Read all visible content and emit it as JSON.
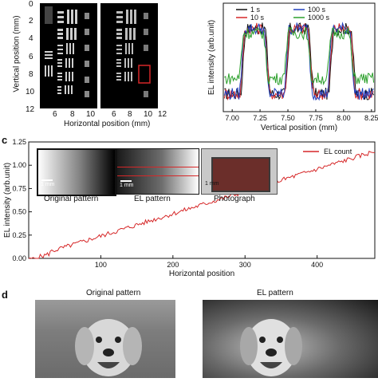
{
  "panel_labels": {
    "c": "c",
    "d": "d"
  },
  "top_left": {
    "ylabel": "Vertical position (mm)",
    "xlabel": "Horizontal position (mm)",
    "y_ticks": [
      "0",
      "2",
      "4",
      "6",
      "8",
      "10",
      "12"
    ],
    "x_ticks_a": [
      "6",
      "8",
      "10"
    ],
    "x_ticks_b": [
      "6",
      "8",
      "10",
      "12"
    ]
  },
  "chart_data": [
    {
      "type": "line",
      "xlabel": "Vertical position (mm)",
      "ylabel": "EL intensity (arb.unit)",
      "xlim": [
        6.92,
        8.28
      ],
      "x_ticks": [
        "7.00",
        "7.25",
        "7.50",
        "7.75",
        "8.00",
        "8.25"
      ],
      "legend_placement": "top",
      "series": [
        {
          "name": "1 s",
          "color": "#111111"
        },
        {
          "name": "10 s",
          "color": "#d62728"
        },
        {
          "name": "100 s",
          "color": "#1f3fbf"
        },
        {
          "name": "1000 s",
          "color": "#2ca02c"
        }
      ]
    },
    {
      "type": "line",
      "xlabel": "Horizontal position",
      "ylabel": "EL intensity (arb.unit)",
      "xlim": [
        0,
        480
      ],
      "ylim": [
        0,
        1.25
      ],
      "x_ticks": [
        100,
        200,
        300,
        400
      ],
      "y_ticks": [
        "0.00",
        "0.25",
        "0.50",
        "0.75",
        "1.00",
        "1.25"
      ],
      "legend_placement": "top-right",
      "series": [
        {
          "name": "EL count",
          "color": "#d62728",
          "start": 0.0,
          "end": 1.15
        }
      ]
    }
  ],
  "insets": {
    "original": "Original pattern",
    "el": "EL pattern",
    "photo": "Photograph",
    "scale": "1 mm"
  },
  "panel_d": {
    "original_title": "Original pattern",
    "el_title": "EL pattern"
  }
}
